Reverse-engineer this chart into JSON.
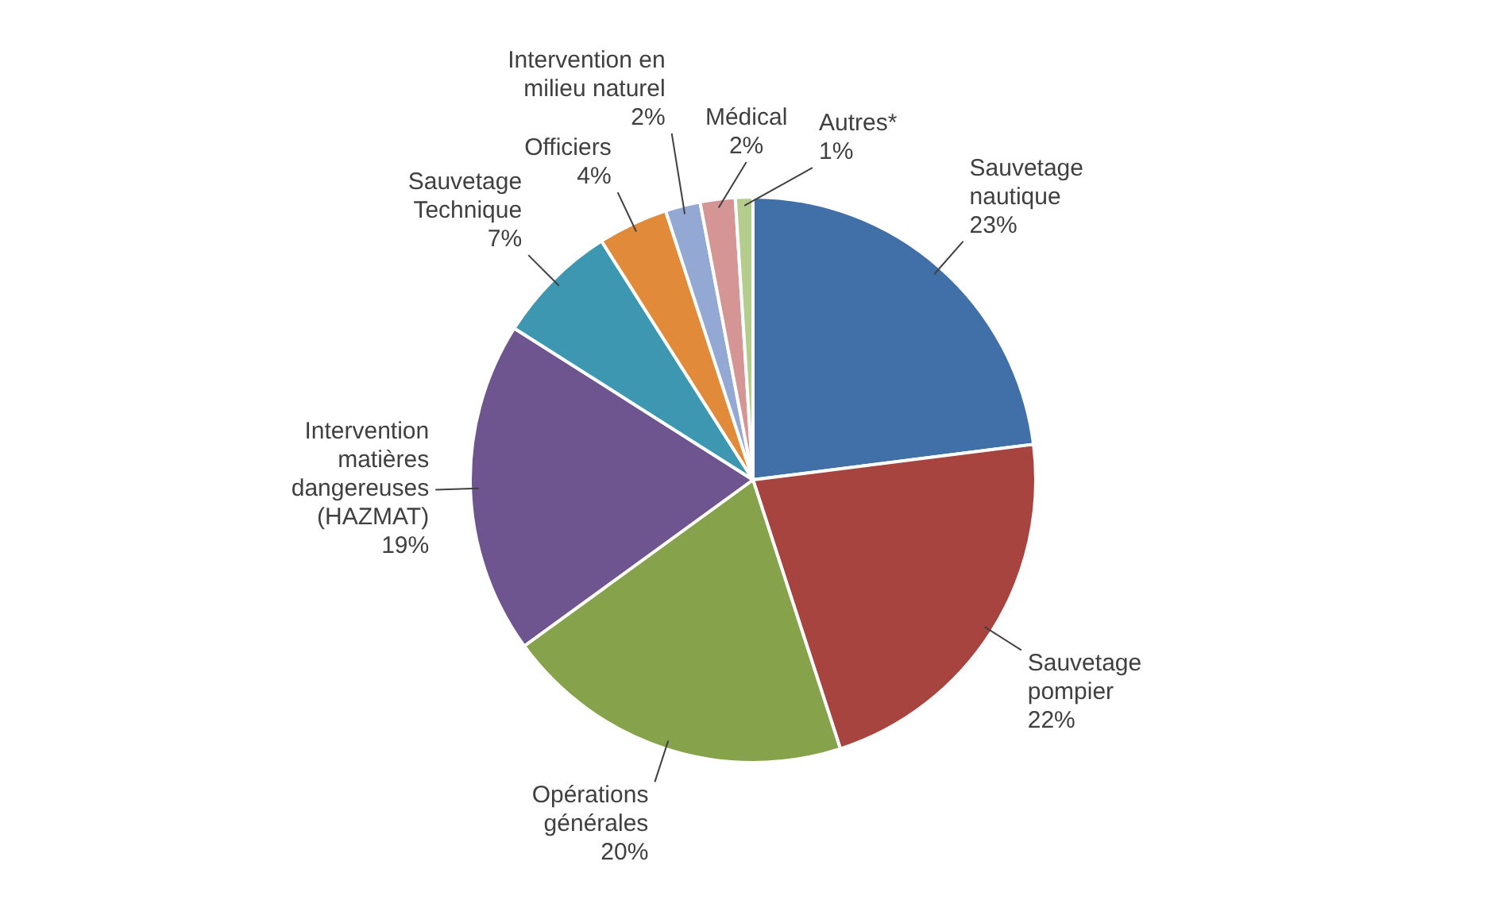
{
  "chart_data": {
    "type": "pie",
    "categories": [
      "Sauvetage nautique",
      "Sauvetage pompier",
      "Opérations générales",
      "Intervention matières dangereuses (HAZMAT)",
      "Sauvetage Technique",
      "Officiers",
      "Intervention en milieu naturel",
      "Médical",
      "Autres*"
    ],
    "values": [
      23,
      22,
      20,
      19,
      7,
      4,
      2,
      2,
      1
    ],
    "colors": [
      "#4170a8",
      "#a84440",
      "#86a24a",
      "#6e5590",
      "#3d97b0",
      "#e08a3a",
      "#93a9d4",
      "#d59594",
      "#b5cd8c"
    ],
    "value_labels": [
      "23%",
      "22%",
      "20%",
      "19%",
      "7%",
      "4%",
      "2%",
      "2%",
      "1%"
    ],
    "legend": false
  }
}
